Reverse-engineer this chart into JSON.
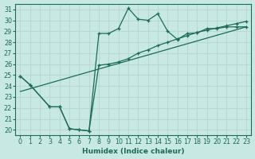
{
  "xlabel": "Humidex (Indice chaleur)",
  "bg_color": "#c8e8e4",
  "line_color": "#1a6b5a",
  "grid_color": "#b8d8d4",
  "xlim": [
    -0.5,
    23.5
  ],
  "ylim": [
    19.5,
    31.5
  ],
  "xticks": [
    0,
    1,
    2,
    3,
    4,
    5,
    6,
    7,
    8,
    9,
    10,
    11,
    12,
    13,
    14,
    15,
    16,
    17,
    18,
    19,
    20,
    21,
    22,
    23
  ],
  "yticks": [
    20,
    21,
    22,
    23,
    24,
    25,
    26,
    27,
    28,
    29,
    30,
    31
  ],
  "curve1_x": [
    0,
    1,
    3,
    4,
    5,
    6,
    7,
    8,
    9,
    10,
    11,
    12,
    13,
    14,
    15,
    16,
    17,
    18,
    19,
    20,
    21,
    22,
    23
  ],
  "curve1_y": [
    24.9,
    24.1,
    22.1,
    22.1,
    20.1,
    20.0,
    19.9,
    25.9,
    26.0,
    26.2,
    26.5,
    27.0,
    27.3,
    27.7,
    28.0,
    28.3,
    28.6,
    28.9,
    29.1,
    29.3,
    29.5,
    29.7,
    29.9
  ],
  "curve2_x": [
    0,
    1,
    3,
    4,
    5,
    6,
    7,
    8,
    9,
    10,
    11,
    12,
    13,
    14,
    15,
    16,
    17,
    18,
    19,
    20,
    21,
    22,
    23
  ],
  "curve2_y": [
    24.9,
    24.1,
    22.1,
    22.1,
    20.1,
    20.0,
    19.9,
    28.8,
    28.8,
    29.25,
    31.1,
    30.1,
    30.0,
    30.6,
    29.0,
    28.25,
    28.8,
    28.85,
    29.25,
    29.25,
    29.4,
    29.4,
    29.4
  ],
  "curve3_x": [
    0,
    23
  ],
  "curve3_y": [
    23.5,
    29.4
  ],
  "fontsize": 6.5,
  "tick_fontsize": 5.8
}
